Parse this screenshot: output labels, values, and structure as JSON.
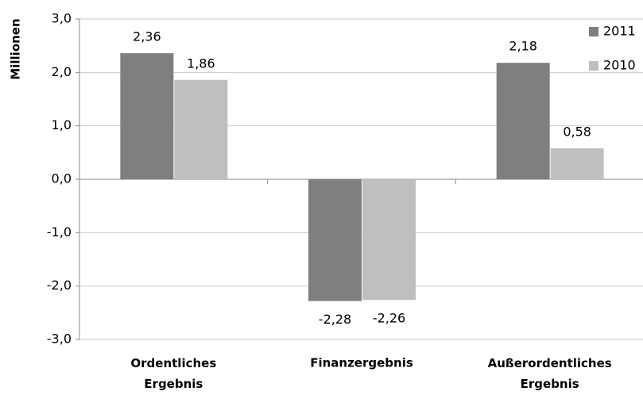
{
  "chart_data": {
    "type": "bar",
    "y_label": "Millionen",
    "categories": [
      "Ordentliches Ergebnis",
      "Finanzergebnis",
      "Außerordentliches Ergebnis"
    ],
    "series": [
      {
        "name": "2011",
        "color": "#7f7f7f",
        "values": [
          2.36,
          -2.28,
          2.18
        ],
        "value_labels": [
          "2,36",
          "-2,28",
          "2,18"
        ]
      },
      {
        "name": "2010",
        "color": "#bfbfbf",
        "values": [
          1.86,
          -2.26,
          0.58
        ],
        "value_labels": [
          "1,86",
          "-2,26",
          "0,58"
        ]
      }
    ],
    "ylim": [
      -3,
      3
    ],
    "yticks": [
      {
        "value": -3,
        "label": "-3,0"
      },
      {
        "value": -2,
        "label": "-2,0"
      },
      {
        "value": -1,
        "label": "-1,0"
      },
      {
        "value": 0,
        "label": "0,0"
      },
      {
        "value": 1,
        "label": "1,0"
      },
      {
        "value": 2,
        "label": "2,0"
      },
      {
        "value": 3,
        "label": "3,0"
      }
    ],
    "grid": true,
    "legend": "top-right"
  }
}
